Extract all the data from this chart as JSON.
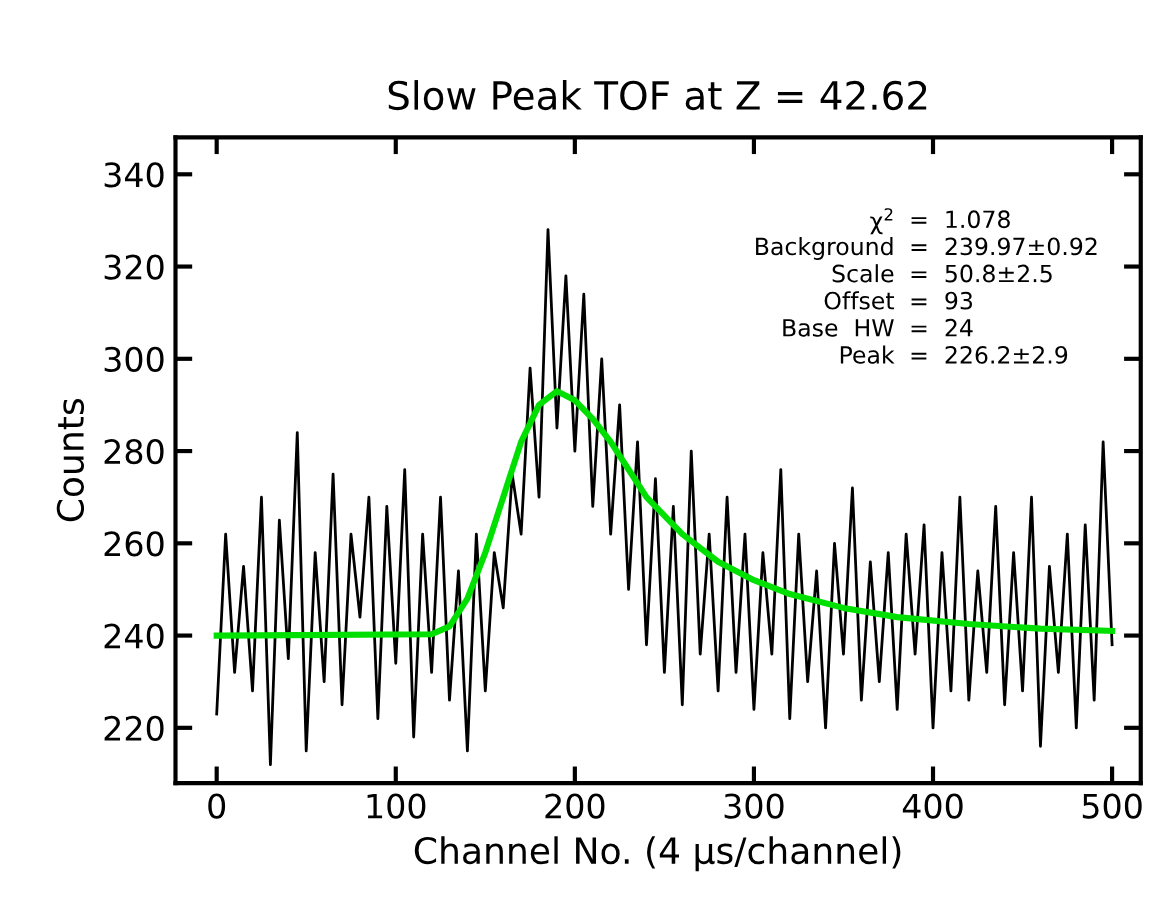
{
  "chart_data": {
    "type": "line",
    "title": "Slow Peak TOF at Z = 42.62",
    "xlabel": "Channel No. (4 μs/channel)",
    "ylabel": "Counts",
    "xlim": [
      -23,
      516
    ],
    "xticks": [
      0,
      100,
      200,
      300,
      400,
      500
    ],
    "ylim": [
      208,
      348
    ],
    "yticks": [
      220,
      240,
      260,
      280,
      300,
      320,
      340
    ],
    "grid": false,
    "legend": false,
    "marker": "none",
    "line_style": "solid",
    "annotations": [
      "χ$^{2}$ = 1.078",
      "Background = 239.97±0.92",
      "Scale = 50.8±2.5",
      "Offset = 93",
      "Base  HW = 24",
      "Peak = 226.2±2.9"
    ],
    "series": [
      {
        "color": "#000000",
        "x": [
          0,
          5,
          10,
          15,
          20,
          25,
          30,
          35,
          40,
          45,
          50,
          55,
          60,
          65,
          70,
          75,
          80,
          85,
          90,
          95,
          100,
          105,
          110,
          115,
          120,
          125,
          130,
          135,
          140,
          145,
          150,
          155,
          160,
          165,
          170,
          175,
          180,
          185,
          190,
          195,
          200,
          205,
          210,
          215,
          220,
          225,
          230,
          235,
          240,
          245,
          250,
          255,
          260,
          265,
          270,
          275,
          280,
          285,
          290,
          295,
          300,
          305,
          310,
          315,
          320,
          325,
          330,
          335,
          340,
          345,
          350,
          355,
          360,
          365,
          370,
          375,
          380,
          385,
          390,
          395,
          400,
          405,
          410,
          415,
          420,
          425,
          430,
          435,
          440,
          445,
          450,
          455,
          460,
          465,
          470,
          475,
          480,
          485,
          490,
          495,
          500
        ],
        "values": [
          223,
          262,
          232,
          255,
          228,
          270,
          212,
          265,
          235,
          284,
          215,
          258,
          230,
          275,
          225,
          262,
          244,
          270,
          222,
          268,
          234,
          276,
          218,
          262,
          232,
          270,
          226,
          254,
          215,
          262,
          228,
          258,
          246,
          275,
          262,
          298,
          270,
          328,
          285,
          318,
          280,
          314,
          268,
          300,
          262,
          290,
          250,
          282,
          238,
          274,
          232,
          268,
          225,
          280,
          236,
          262,
          228,
          270,
          232,
          262,
          224,
          258,
          236,
          276,
          222,
          262,
          230,
          254,
          220,
          260,
          236,
          272,
          226,
          256,
          230,
          258,
          224,
          262,
          236,
          264,
          220,
          258,
          228,
          270,
          226,
          254,
          232,
          268,
          225,
          258,
          228,
          270,
          216,
          255,
          232,
          262,
          220,
          264,
          226,
          282,
          238
        ]
      },
      {
        "color": "#00e000",
        "x": [
          0,
          120,
          130,
          140,
          150,
          160,
          170,
          180,
          190,
          200,
          210,
          220,
          230,
          240,
          260,
          280,
          300,
          320,
          350,
          380,
          420,
          460,
          500
        ],
        "values": [
          240,
          240.3,
          242,
          248,
          258,
          270,
          282,
          290,
          293,
          291,
          287,
          282,
          276,
          270,
          262,
          256,
          252,
          249,
          246,
          244,
          242.5,
          241.5,
          241
        ]
      }
    ]
  }
}
